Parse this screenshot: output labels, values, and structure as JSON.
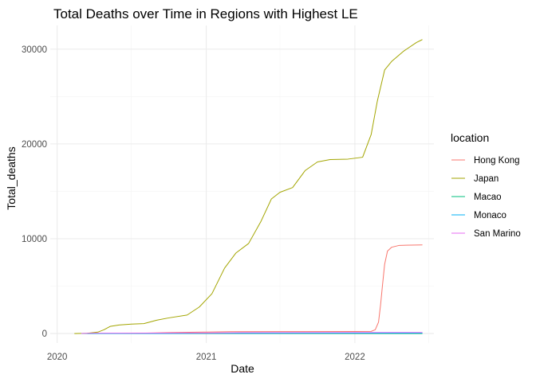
{
  "chart_data": {
    "type": "line",
    "title": "Total Deaths over Time in Regions with Highest LE",
    "xlabel": "Date",
    "ylabel": "Total_deaths",
    "x_tick_labels": [
      "2020",
      "2021",
      "2022"
    ],
    "y_tick_labels": [
      "0",
      "10000",
      "20000",
      "30000"
    ],
    "x_ticks": [
      "2020-01-01",
      "2021-01-01",
      "2022-01-01"
    ],
    "x_minor_ticks": [
      "2020-07-01",
      "2021-07-01",
      "2022-07-01"
    ],
    "y_ticks": [
      0,
      10000,
      20000,
      30000
    ],
    "xlim": [
      "2019-12-15",
      "2022-07-14"
    ],
    "ylim": [
      -1000,
      32500
    ],
    "grid": true,
    "legend": {
      "title": "location",
      "position": "right"
    },
    "series": [
      {
        "name": "Hong Kong",
        "color": "#F8766D",
        "points": [
          [
            "2020-03-01",
            4
          ],
          [
            "2020-06-01",
            7
          ],
          [
            "2020-08-20",
            60
          ],
          [
            "2020-10-01",
            105
          ],
          [
            "2021-01-01",
            155
          ],
          [
            "2021-03-01",
            200
          ],
          [
            "2021-07-01",
            210
          ],
          [
            "2022-01-01",
            213
          ],
          [
            "2022-02-10",
            230
          ],
          [
            "2022-02-20",
            400
          ],
          [
            "2022-02-28",
            1200
          ],
          [
            "2022-03-05",
            3000
          ],
          [
            "2022-03-10",
            5200
          ],
          [
            "2022-03-15",
            7300
          ],
          [
            "2022-03-22",
            8700
          ],
          [
            "2022-04-01",
            9100
          ],
          [
            "2022-04-20",
            9300
          ],
          [
            "2022-06-15",
            9350
          ]
        ]
      },
      {
        "name": "Japan",
        "color": "#A3A500",
        "points": [
          [
            "2020-02-13",
            1
          ],
          [
            "2020-03-15",
            30
          ],
          [
            "2020-04-10",
            150
          ],
          [
            "2020-04-25",
            400
          ],
          [
            "2020-05-10",
            750
          ],
          [
            "2020-06-01",
            900
          ],
          [
            "2020-07-01",
            990
          ],
          [
            "2020-08-01",
            1050
          ],
          [
            "2020-09-01",
            1400
          ],
          [
            "2020-10-01",
            1650
          ],
          [
            "2020-11-15",
            1950
          ],
          [
            "2020-12-15",
            2800
          ],
          [
            "2021-01-15",
            4200
          ],
          [
            "2021-02-15",
            6900
          ],
          [
            "2021-03-15",
            8500
          ],
          [
            "2021-04-15",
            9500
          ],
          [
            "2021-05-15",
            11800
          ],
          [
            "2021-06-10",
            14200
          ],
          [
            "2021-07-01",
            14900
          ],
          [
            "2021-08-01",
            15400
          ],
          [
            "2021-09-01",
            17200
          ],
          [
            "2021-10-01",
            18100
          ],
          [
            "2021-11-01",
            18350
          ],
          [
            "2021-12-15",
            18400
          ],
          [
            "2022-01-20",
            18600
          ],
          [
            "2022-02-10",
            21000
          ],
          [
            "2022-02-25",
            24500
          ],
          [
            "2022-03-15",
            27800
          ],
          [
            "2022-04-01",
            28700
          ],
          [
            "2022-05-01",
            29800
          ],
          [
            "2022-06-01",
            30700
          ],
          [
            "2022-06-15",
            31000
          ]
        ]
      },
      {
        "name": "Macao",
        "color": "#00BF7D",
        "points": [
          [
            "2020-03-01",
            0
          ],
          [
            "2022-06-15",
            0
          ]
        ]
      },
      {
        "name": "Monaco",
        "color": "#00B0F6",
        "points": [
          [
            "2020-03-15",
            1
          ],
          [
            "2020-04-15",
            4
          ],
          [
            "2020-09-01",
            10
          ],
          [
            "2021-01-01",
            30
          ],
          [
            "2021-05-01",
            33
          ],
          [
            "2022-06-15",
            56
          ]
        ]
      },
      {
        "name": "San Marino",
        "color": "#E76BF3",
        "points": [
          [
            "2020-03-01",
            5
          ],
          [
            "2020-04-01",
            40
          ],
          [
            "2020-07-01",
            42
          ],
          [
            "2020-11-01",
            55
          ],
          [
            "2021-01-01",
            65
          ],
          [
            "2021-04-01",
            90
          ],
          [
            "2022-06-15",
            115
          ]
        ]
      }
    ]
  }
}
